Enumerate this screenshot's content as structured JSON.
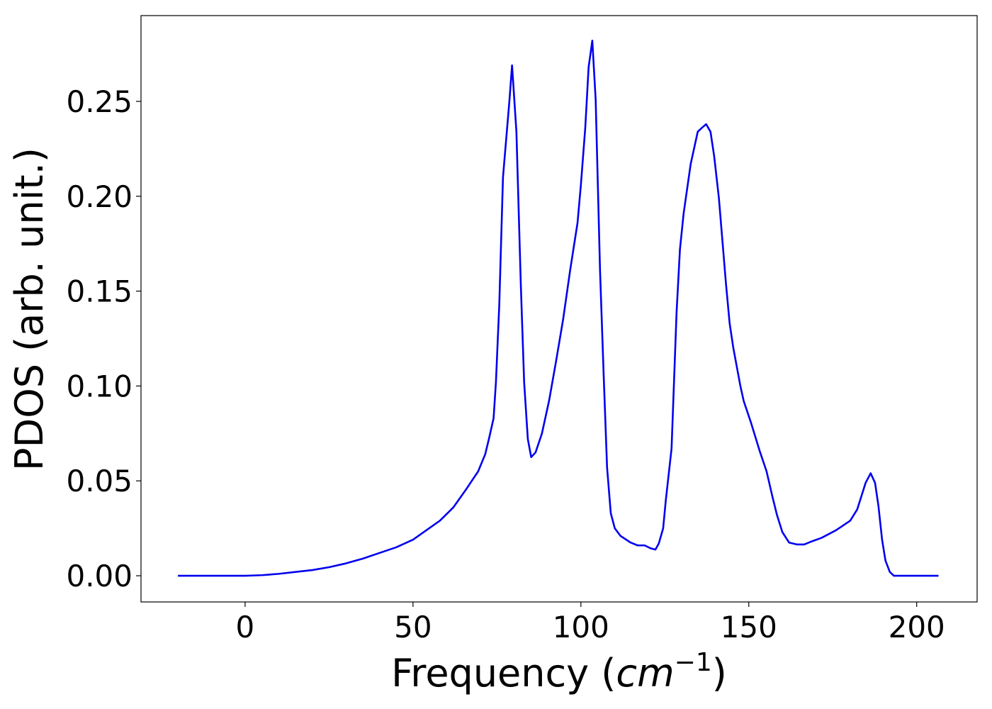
{
  "chart_data": {
    "type": "line",
    "xlabel": "Frequency (cm−1)",
    "ylabel": "PDOS (arb. unit.)",
    "xlim": [
      -31,
      218
    ],
    "ylim": [
      -0.0138,
      0.2952
    ],
    "xticks": [
      0,
      50,
      100,
      150,
      200
    ],
    "yticks": [
      {
        "value": 0,
        "label": "0.00"
      },
      {
        "value": 0.05,
        "label": "0.05"
      },
      {
        "value": 0.1,
        "label": "0.10"
      },
      {
        "value": 0.15,
        "label": "0.15"
      },
      {
        "value": 0.2,
        "label": "0.20"
      },
      {
        "value": 0.25,
        "label": "0.25"
      }
    ],
    "grid": false,
    "x": [
      -20,
      0,
      5,
      10,
      15,
      20,
      25,
      30,
      35,
      40,
      45,
      50,
      54,
      58,
      62,
      66,
      69.4,
      71.5,
      72.6,
      74,
      74.7,
      75.7,
      76.8,
      78.7,
      79.5,
      80.8,
      82.1,
      83.1,
      84.2,
      85.2,
      86.5,
      88.4,
      90.5,
      92.6,
      94.7,
      96.8,
      99,
      100,
      101.3,
      102.3,
      103.4,
      104.4,
      105.7,
      106.8,
      107.8,
      108.9,
      110.1,
      111.8,
      114.8,
      116.9,
      119,
      120.7,
      122.2,
      123.2,
      124.5,
      125.3,
      127,
      128.5,
      129.5,
      130.6,
      132.7,
      134.8,
      136,
      137.3,
      138.6,
      139.7,
      141.1,
      143.2,
      144.3,
      145.4,
      147.5,
      148.5,
      150.6,
      153.2,
      155.3,
      157,
      158.4,
      160,
      162,
      164.3,
      166.5,
      168.6,
      171.7,
      176,
      180.2,
      182.3,
      184.8,
      186.3,
      187.6,
      188.6,
      189.7,
      190.7,
      192,
      193.2,
      206.5
    ],
    "series": [
      {
        "name": "PDOS",
        "color": "#0000ee",
        "values": [
          0,
          0,
          0.0003,
          0.001,
          0.002,
          0.003,
          0.0045,
          0.0065,
          0.009,
          0.012,
          0.015,
          0.019,
          0.024,
          0.029,
          0.036,
          0.046,
          0.055,
          0.064,
          0.072,
          0.083,
          0.102,
          0.143,
          0.21,
          0.25,
          0.269,
          0.234,
          0.154,
          0.102,
          0.072,
          0.0625,
          0.065,
          0.075,
          0.092,
          0.113,
          0.135,
          0.161,
          0.186,
          0.206,
          0.236,
          0.268,
          0.282,
          0.251,
          0.161,
          0.105,
          0.057,
          0.033,
          0.025,
          0.021,
          0.0175,
          0.016,
          0.016,
          0.0145,
          0.0138,
          0.017,
          0.025,
          0.04,
          0.067,
          0.139,
          0.172,
          0.191,
          0.217,
          0.234,
          0.236,
          0.238,
          0.234,
          0.221,
          0.199,
          0.154,
          0.133,
          0.12,
          0.1,
          0.092,
          0.081,
          0.066,
          0.055,
          0.042,
          0.032,
          0.023,
          0.0175,
          0.0165,
          0.0165,
          0.018,
          0.02,
          0.024,
          0.029,
          0.035,
          0.049,
          0.054,
          0.049,
          0.037,
          0.019,
          0.008,
          0.002,
          0,
          0
        ]
      }
    ]
  }
}
